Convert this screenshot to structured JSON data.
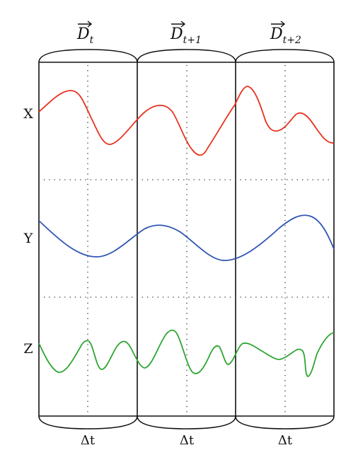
{
  "window_headers": [
    {
      "symbol": "D",
      "subscript": "t"
    },
    {
      "symbol": "D",
      "subscript": "t+1"
    },
    {
      "symbol": "D",
      "subscript": "t+2"
    }
  ],
  "interval_labels": [
    "Δt",
    "Δt",
    "Δt"
  ],
  "signals": [
    {
      "label": "X",
      "color": "#e8321e"
    },
    {
      "label": "Y",
      "color": "#2f55b4"
    },
    {
      "label": "Z",
      "color": "#2ea532"
    }
  ]
}
